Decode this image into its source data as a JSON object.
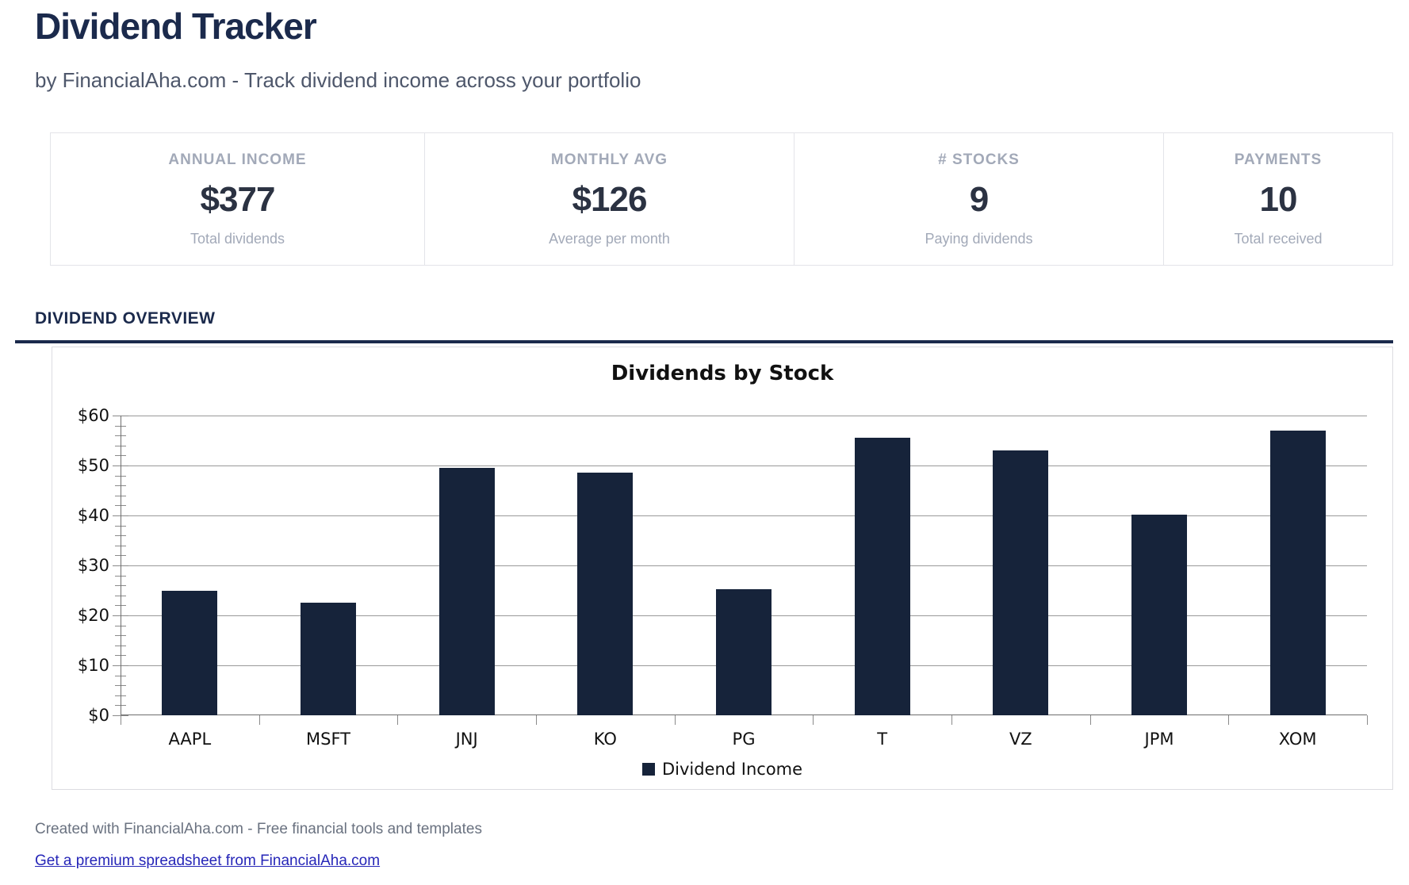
{
  "page": {
    "title": "Dividend Tracker",
    "subtitle": "by FinancialAha.com - Track dividend income across your portfolio"
  },
  "stats": {
    "cards": [
      {
        "label": "ANNUAL INCOME",
        "value": "$377",
        "sub": "Total dividends"
      },
      {
        "label": "MONTHLY AVG",
        "value": "$126",
        "sub": "Average per month"
      },
      {
        "label": "# STOCKS",
        "value": "9",
        "sub": "Paying dividends"
      },
      {
        "label": "PAYMENTS",
        "value": "10",
        "sub": "Total received"
      }
    ]
  },
  "section": {
    "title": "DIVIDEND OVERVIEW"
  },
  "chart_data": {
    "type": "bar",
    "title": "Dividends by Stock",
    "categories": [
      "AAPL",
      "MSFT",
      "JNJ",
      "KO",
      "PG",
      "T",
      "VZ",
      "JPM",
      "XOM"
    ],
    "values": [
      25,
      22.5,
      49.5,
      48.5,
      25.2,
      55.5,
      53,
      40.2,
      57
    ],
    "series_name": "Dividend Income",
    "ylabel": "",
    "xlabel": "",
    "ylim": [
      0,
      60
    ],
    "y_tick_step": 10,
    "y_minor_step": 2,
    "y_tick_prefix": "$",
    "grid": true,
    "legend_position": "bottom",
    "bar_color": "#16233a"
  },
  "footer": {
    "credit": "Created with FinancialAha.com - Free financial tools and templates",
    "link_label": "Get a premium spreadsheet from FinancialAha.com"
  },
  "colors": {
    "navy": "#1b2a4c",
    "bar": "#16233a",
    "gridline": "#999999",
    "link": "#2626b8"
  }
}
